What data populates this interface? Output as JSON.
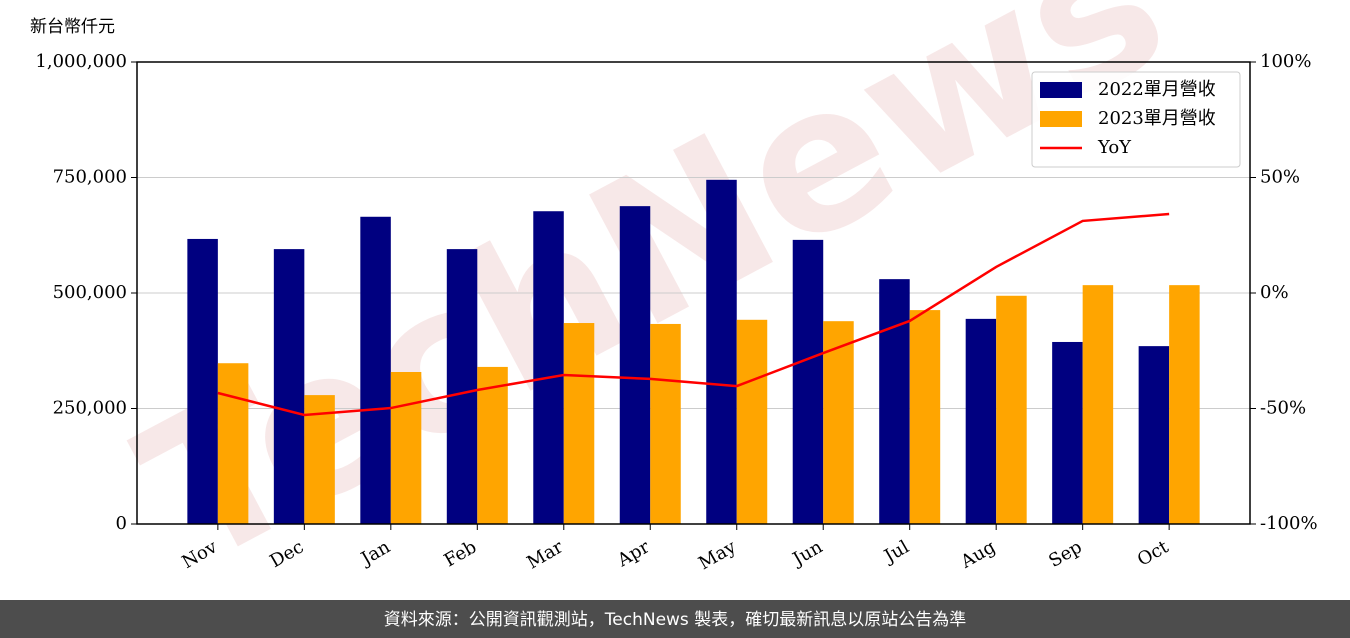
{
  "chart_data": {
    "type": "bar",
    "y_label": "新台幣仟元",
    "watermark": "TechNews",
    "footer": "資料來源：公開資訊觀測站，TechNews 製表，確切最新訊息以原站公告為準",
    "categories": [
      "Nov",
      "Dec",
      "Jan",
      "Feb",
      "Mar",
      "Apr",
      "May",
      "Jun",
      "Jul",
      "Aug",
      "Sep",
      "Oct"
    ],
    "series": [
      {
        "name": "2022單月營收",
        "color": "#000080",
        "type": "bar",
        "values": [
          617000,
          595000,
          665000,
          595000,
          677000,
          688000,
          745000,
          615000,
          530000,
          444000,
          394000,
          385000
        ]
      },
      {
        "name": "2023單月營收",
        "color": "#ffa500",
        "type": "bar",
        "values": [
          348000,
          279000,
          329000,
          340000,
          435000,
          433000,
          442000,
          439000,
          463000,
          494000,
          517000,
          517000
        ]
      },
      {
        "name": "YoY",
        "color": "#ff0000",
        "type": "line",
        "axis": "y2",
        "values": [
          -43.3,
          -52.8,
          -49.8,
          -42,
          -35.5,
          -37.2,
          -40.3,
          -26,
          -12.1,
          11.3,
          31.2,
          34.2
        ]
      }
    ],
    "ylim": [
      0,
      1000000
    ],
    "yticks": [
      0,
      {
        "value": 250000,
        "label": "250,000"
      },
      {
        "value": 500000,
        "label": "500,000"
      },
      {
        "value": 750000,
        "label": "750,000"
      },
      {
        "value": 1000000,
        "label": "1,000,000"
      }
    ],
    "y2lim": [
      -100,
      100
    ],
    "y2ticks": [
      {
        "value": -100,
        "label": "-100%"
      },
      {
        "value": -50,
        "label": "-50%"
      },
      {
        "value": 0,
        "label": "0%"
      },
      {
        "value": 50,
        "label": "50%"
      },
      {
        "value": 100,
        "label": "100%"
      }
    ],
    "grid": true,
    "legend": "upper right"
  }
}
